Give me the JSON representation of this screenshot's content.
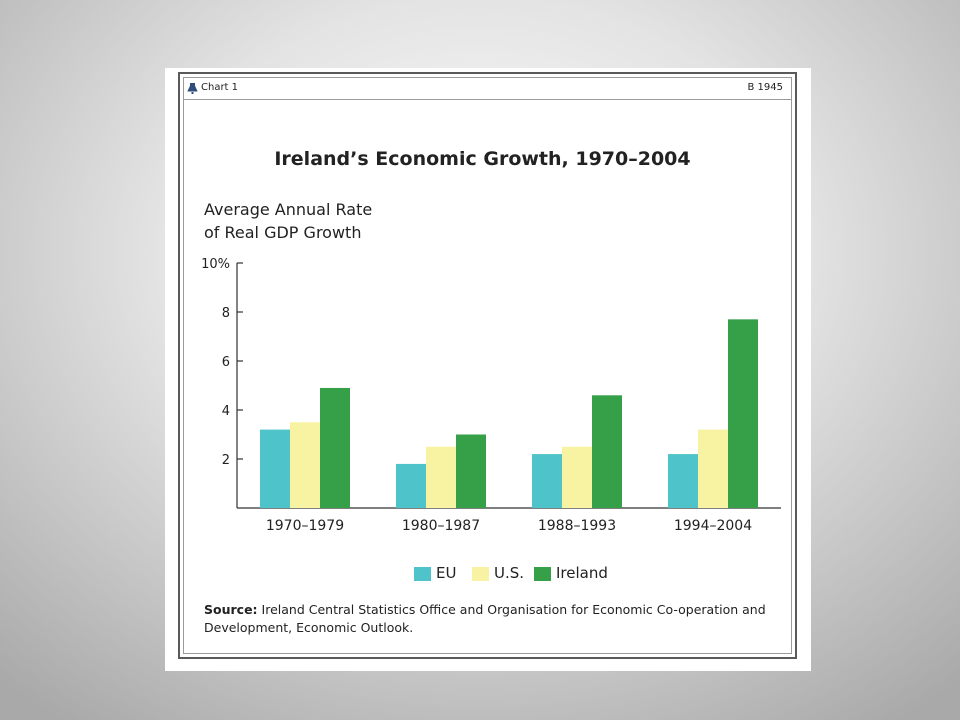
{
  "header": {
    "label": "Chart 1",
    "code": "B 1945"
  },
  "chart_data": {
    "type": "bar",
    "title": "Ireland’s Economic Growth, 1970–2004",
    "ylabel_line1": "Average Annual Rate",
    "ylabel_line2": "of Real GDP Growth",
    "xlabel": "",
    "categories": [
      "1970–1979",
      "1980–1987",
      "1988–1993",
      "1994–2004"
    ],
    "series": [
      {
        "name": "EU",
        "color": "#4ec3c9",
        "values": [
          3.2,
          1.8,
          2.2,
          2.2
        ]
      },
      {
        "name": "U.S.",
        "color": "#f8f3a3",
        "values": [
          3.5,
          2.5,
          2.5,
          3.2
        ]
      },
      {
        "name": "Ireland",
        "color": "#36a049",
        "values": [
          4.9,
          3.0,
          4.6,
          7.7
        ]
      }
    ],
    "ylim": [
      0,
      10
    ],
    "yticks": [
      {
        "value": 2,
        "label": "2"
      },
      {
        "value": 4,
        "label": "4"
      },
      {
        "value": 6,
        "label": "6"
      },
      {
        "value": 8,
        "label": "8"
      },
      {
        "value": 10,
        "label": "10%"
      }
    ],
    "grid": false,
    "legend_position": "bottom"
  },
  "source": {
    "label": "Source:",
    "text": "Ireland Central Statistics Office and Organisation for Economic Co-operation and Development, Economic Outlook."
  }
}
